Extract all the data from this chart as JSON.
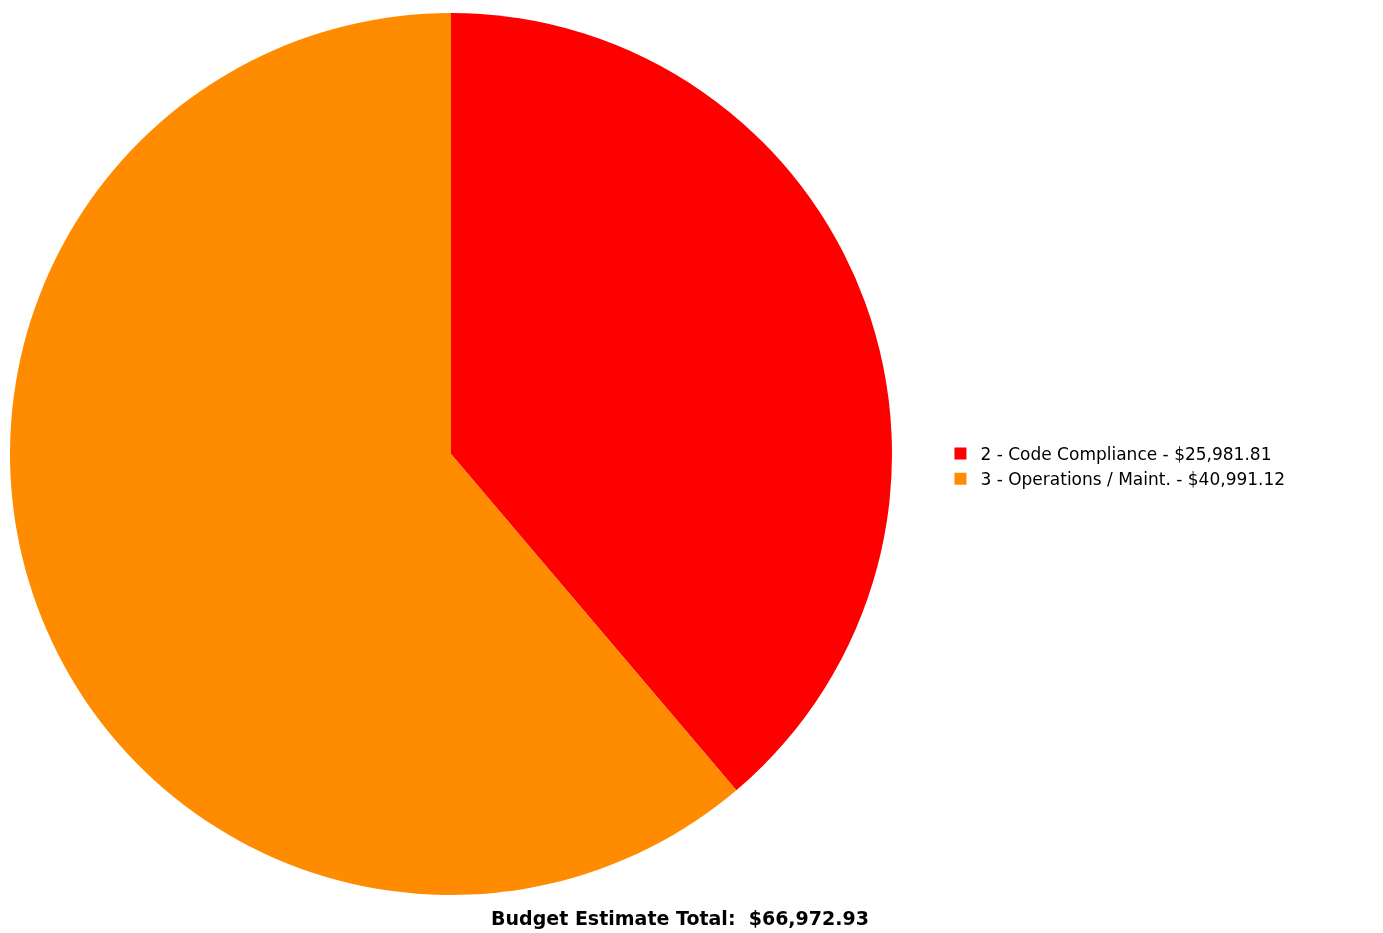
{
  "chart_data": {
    "type": "pie",
    "title": "Budget Estimate Total:  $66,972.93",
    "categories": [
      "2 - Code Compliance - $25,981.81",
      "3 - Operations / Maint. - $40,991.12"
    ],
    "values": [
      38.8,
      61.2
    ],
    "colors": [
      "#ff0000",
      "#ff8c00"
    ],
    "legend": "right"
  }
}
